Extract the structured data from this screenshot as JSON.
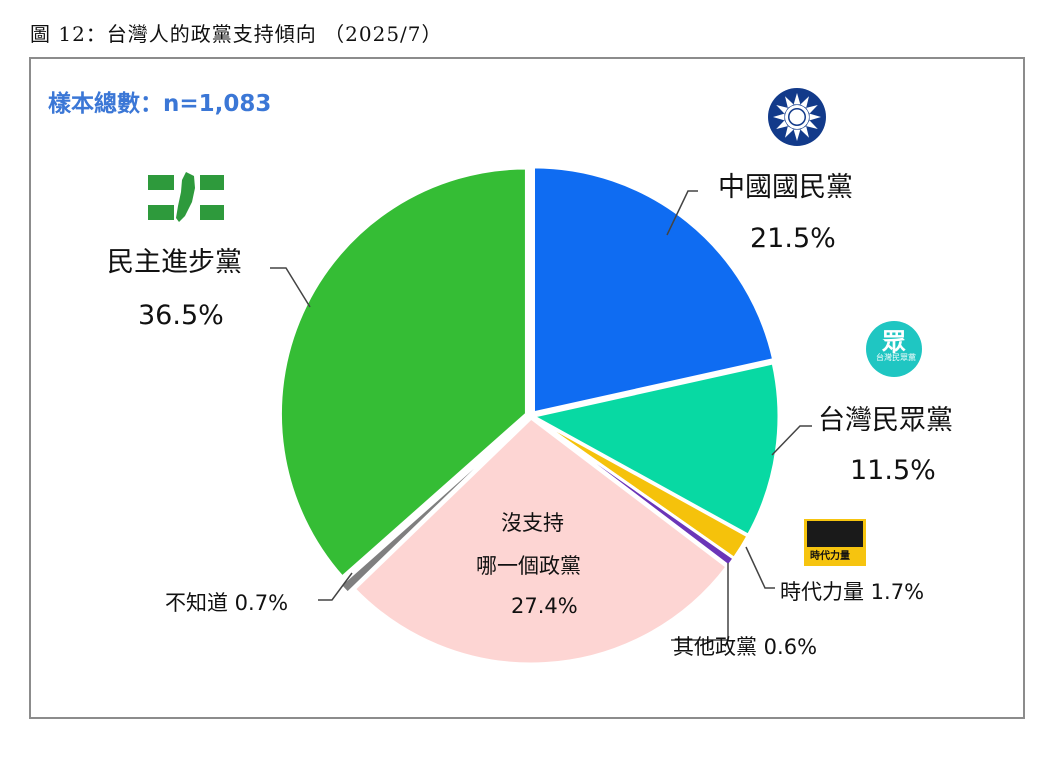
{
  "figure_title": "圖 12：台灣人的政黨支持傾向 （2025/7）",
  "sample_note": "樣本總數：n=1,083",
  "chart_data": {
    "type": "pie",
    "title": "台灣人的政黨支持傾向",
    "slices": [
      {
        "label": "中國國民黨",
        "value": 21.5,
        "value_text": "21.5%",
        "color": "#0f6cf2"
      },
      {
        "label": "台灣民眾黨",
        "value": 11.5,
        "value_text": "11.5%",
        "color": "#08d9a3"
      },
      {
        "label": "時代力量",
        "value": 1.7,
        "value_text": "1.7%",
        "color": "#f5c20b"
      },
      {
        "label": "其他政黨",
        "value": 0.6,
        "value_text": "0.6%",
        "color": "#6b35b8"
      },
      {
        "label": "沒支持哪一個政黨",
        "value": 27.4,
        "value_text": "27.4%",
        "color": "#fdd5d3"
      },
      {
        "label": "不知道",
        "value": 0.7,
        "value_text": "0.7%",
        "color": "#7f7f7f"
      },
      {
        "label": "民主進步黨",
        "value": 36.5,
        "value_text": "36.5%",
        "color": "#35bd35"
      }
    ]
  },
  "labels": {
    "kmt_name": "中國國民黨",
    "kmt_pct": "21.5%",
    "tpp_name": "台灣民眾黨",
    "tpp_pct": "11.5%",
    "npp_text": "時代力量 1.7%",
    "other_text": "其他政黨 0.6%",
    "none_line1": "沒支持",
    "none_line2": "哪一個政黨",
    "none_pct": "27.4%",
    "unknown_text": "不知道 0.7%",
    "dpp_name": "民主進步黨",
    "dpp_pct": "36.5%"
  },
  "logos": {
    "kmt": "kmt-sun-emblem",
    "tpp": "tpp-logo",
    "tpp_logo_text": "眾",
    "tpp_logo_sub": "台灣民眾黨",
    "npp": "npp-logo",
    "npp_logo_text": "時代力量",
    "dpp": "dpp-taiwan-emblem"
  }
}
